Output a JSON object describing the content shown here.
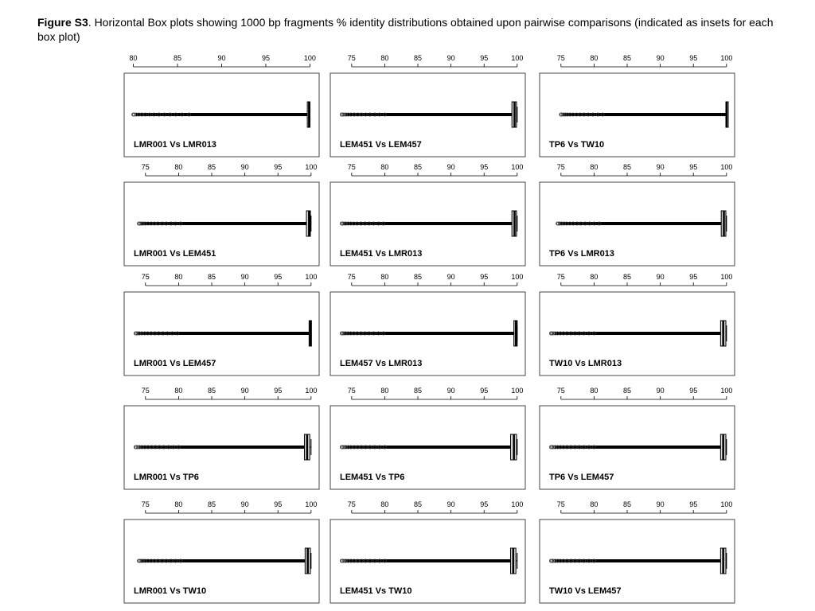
{
  "caption": {
    "label": "Figure S3",
    "text": ". Horizontal Box plots showing 1000 bp fragments % identity distributions obtained upon pairwise comparisons (indicated as insets for each box plot)"
  },
  "colors": {
    "axis": "#000000",
    "frame": "#444444",
    "outlier": "#333333",
    "box_fill": "#d9d9d9"
  },
  "chart_data": [
    {
      "type": "boxplot",
      "orientation": "horizontal",
      "inset": "LMR001 Vs LMR013",
      "ticks": [
        80,
        85,
        90,
        95,
        100
      ],
      "xlim": [
        79.5,
        100.5
      ],
      "min_outlier": 80,
      "whisker_low": 80.3,
      "q1": 99.7,
      "median": 99.9,
      "q3": 100,
      "whisker_high": 100
    },
    {
      "type": "boxplot",
      "orientation": "horizontal",
      "inset": "LEM451 Vs LEM457",
      "ticks": [
        75,
        80,
        85,
        90,
        95,
        100
      ],
      "xlim": [
        72.5,
        100.5
      ],
      "min_outlier": 73.5,
      "whisker_low": 74,
      "q1": 99.2,
      "median": 99.6,
      "q3": 99.9,
      "whisker_high": 100
    },
    {
      "type": "boxplot",
      "orientation": "horizontal",
      "inset": "TP6 Vs TW10",
      "ticks": [
        75,
        80,
        85,
        90,
        95,
        100
      ],
      "xlim": [
        72.5,
        100.5
      ],
      "min_outlier": 75,
      "whisker_low": 75.3,
      "q1": 99.9,
      "median": 100,
      "q3": 100,
      "whisker_high": 100
    },
    {
      "type": "boxplot",
      "orientation": "horizontal",
      "inset": "LMR001 Vs LEM451",
      "ticks": [
        75,
        80,
        85,
        90,
        95,
        100
      ],
      "xlim": [
        72.5,
        100.5
      ],
      "min_outlier": 74,
      "whisker_low": 74.3,
      "q1": 99.3,
      "median": 99.7,
      "q3": 99.9,
      "whisker_high": 100
    },
    {
      "type": "boxplot",
      "orientation": "horizontal",
      "inset": "LEM451 Vs LMR013",
      "ticks": [
        75,
        80,
        85,
        90,
        95,
        100
      ],
      "xlim": [
        72.5,
        100.5
      ],
      "min_outlier": 73.5,
      "whisker_low": 73.8,
      "q1": 99.2,
      "median": 99.6,
      "q3": 99.9,
      "whisker_high": 100
    },
    {
      "type": "boxplot",
      "orientation": "horizontal",
      "inset": "TP6 Vs LMR013",
      "ticks": [
        75,
        80,
        85,
        90,
        95,
        100
      ],
      "xlim": [
        72.5,
        100.5
      ],
      "min_outlier": 74.5,
      "whisker_low": 74.8,
      "q1": 99.2,
      "median": 99.6,
      "q3": 99.9,
      "whisker_high": 100
    },
    {
      "type": "boxplot",
      "orientation": "horizontal",
      "inset": "LMR001 Vs LEM457",
      "ticks": [
        75,
        80,
        85,
        90,
        95,
        100
      ],
      "xlim": [
        72.5,
        100.5
      ],
      "min_outlier": 73.5,
      "whisker_low": 73.8,
      "q1": 99.7,
      "median": 99.9,
      "q3": 100,
      "whisker_high": 100
    },
    {
      "type": "boxplot",
      "orientation": "horizontal",
      "inset": "LEM457 Vs LMR013",
      "ticks": [
        75,
        80,
        85,
        90,
        95,
        100
      ],
      "xlim": [
        72.5,
        100.5
      ],
      "min_outlier": 73.5,
      "whisker_low": 73.8,
      "q1": 99.5,
      "median": 99.8,
      "q3": 100,
      "whisker_high": 100
    },
    {
      "type": "boxplot",
      "orientation": "horizontal",
      "inset": "TW10 Vs LMR013",
      "ticks": [
        75,
        80,
        85,
        90,
        95,
        100
      ],
      "xlim": [
        72.5,
        100.5
      ],
      "min_outlier": 73.5,
      "whisker_low": 74,
      "q1": 99.1,
      "median": 99.5,
      "q3": 99.9,
      "whisker_high": 100
    },
    {
      "type": "boxplot",
      "orientation": "horizontal",
      "inset": "LMR001 Vs TP6",
      "ticks": [
        75,
        80,
        85,
        90,
        95,
        100
      ],
      "xlim": [
        72.5,
        100.5
      ],
      "min_outlier": 73.5,
      "whisker_low": 74,
      "q1": 99,
      "median": 99.4,
      "q3": 99.8,
      "whisker_high": 100
    },
    {
      "type": "boxplot",
      "orientation": "horizontal",
      "inset": "LEM451 Vs TP6",
      "ticks": [
        75,
        80,
        85,
        90,
        95,
        100
      ],
      "xlim": [
        72.5,
        100.5
      ],
      "min_outlier": 73.5,
      "whisker_low": 74,
      "q1": 99,
      "median": 99.5,
      "q3": 99.9,
      "whisker_high": 100
    },
    {
      "type": "boxplot",
      "orientation": "horizontal",
      "inset": "TP6 Vs LEM457",
      "ticks": [
        75,
        80,
        85,
        90,
        95,
        100
      ],
      "xlim": [
        72.5,
        100.5
      ],
      "min_outlier": 73.5,
      "whisker_low": 74,
      "q1": 99.1,
      "median": 99.5,
      "q3": 99.9,
      "whisker_high": 100
    },
    {
      "type": "boxplot",
      "orientation": "horizontal",
      "inset": "LMR001 Vs TW10",
      "ticks": [
        75,
        80,
        85,
        90,
        95,
        100
      ],
      "xlim": [
        72.5,
        100.5
      ],
      "min_outlier": 74,
      "whisker_low": 74.3,
      "q1": 99.1,
      "median": 99.5,
      "q3": 99.9,
      "whisker_high": 100
    },
    {
      "type": "boxplot",
      "orientation": "horizontal",
      "inset": "LEM451 Vs TW10",
      "ticks": [
        75,
        80,
        85,
        90,
        95,
        100
      ],
      "xlim": [
        72.5,
        100.5
      ],
      "min_outlier": 73.5,
      "whisker_low": 74,
      "q1": 99,
      "median": 99.4,
      "q3": 99.8,
      "whisker_high": 100
    },
    {
      "type": "boxplot",
      "orientation": "horizontal",
      "inset": "TW10 Vs LEM457",
      "ticks": [
        75,
        80,
        85,
        90,
        95,
        100
      ],
      "xlim": [
        72.5,
        100.5
      ],
      "min_outlier": 73.5,
      "whisker_low": 74,
      "q1": 99.1,
      "median": 99.5,
      "q3": 99.9,
      "whisker_high": 100
    }
  ]
}
